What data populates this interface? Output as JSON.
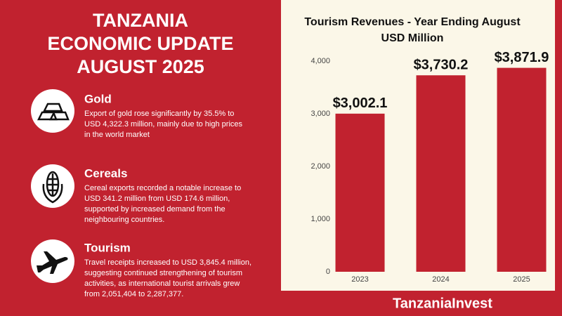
{
  "header": {
    "title": [
      "TANZANIA",
      "ECONOMIC UPDATE",
      "AUGUST 2025"
    ]
  },
  "items": [
    {
      "heading": "Gold",
      "lines": [
        "Export of gold rose significantly by 35.5% to",
        "USD 4,322.3 million, mainly due to high prices",
        "in the world market"
      ]
    },
    {
      "heading": "Cereals",
      "lines": [
        "Cereal exports recorded a notable increase to",
        "USD 341.2 million from USD 174.6 million,",
        "supported by increased demand from the",
        "neighbouring countries."
      ]
    },
    {
      "heading": "Tourism",
      "lines": [
        "Travel receipts increased to USD 3,845.4 million,",
        "suggesting continued strengthening of tourism",
        "activities, as international tourist arrivals grew",
        "from 2,051,404 to 2,287,377."
      ]
    }
  ],
  "footer": {
    "brand": "TanzaniaInvest"
  },
  "chart_data": {
    "type": "bar",
    "title": [
      "Tourism Revenues - Year Ending August",
      "USD Million"
    ],
    "categories": [
      "2023",
      "2024",
      "2025"
    ],
    "values": [
      3002.1,
      3730.2,
      3871.9
    ],
    "value_labels": [
      "$3,002.1",
      "$3,730.2",
      "$3,871.9"
    ],
    "color": "#c1222f",
    "ylim": [
      0,
      4000
    ],
    "yticks": [
      0,
      {
        "value": 1000,
        "label": "1,000"
      },
      {
        "value": 2000,
        "label": "2,000"
      },
      {
        "value": 3000,
        "label": "3,000"
      },
      {
        "value": 4000,
        "label": "4,000"
      }
    ]
  }
}
